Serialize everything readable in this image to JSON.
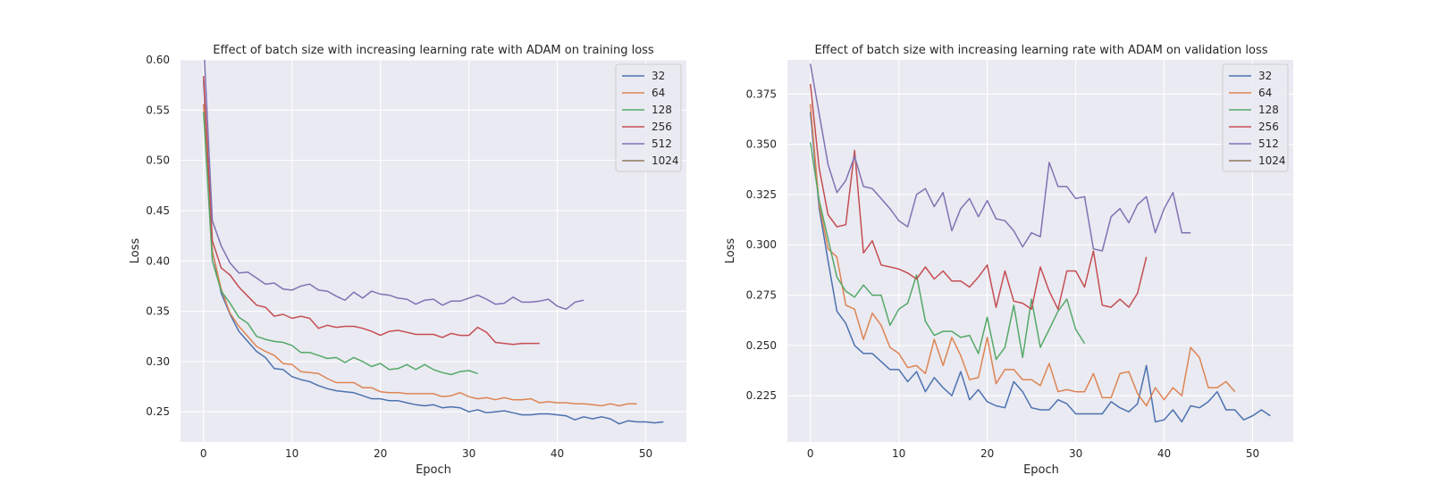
{
  "chart_data": [
    {
      "type": "line",
      "title": "Effect of batch size with increasing learning rate with ADAM on training loss",
      "xlabel": "Epoch",
      "ylabel": "Loss",
      "xlim": [
        -2.6,
        54.6
      ],
      "ylim": [
        0.22,
        0.6
      ],
      "xticks": [
        0,
        10,
        20,
        30,
        40,
        50
      ],
      "yticks": [
        0.25,
        0.3,
        0.35,
        0.4,
        0.45,
        0.5,
        0.55,
        0.6
      ],
      "grid": true,
      "legend_position": "top-right",
      "series": [
        {
          "name": "32",
          "color": "#4c72b0",
          "values": [
            0.58,
            0.41,
            0.368,
            0.347,
            0.33,
            0.32,
            0.31,
            0.304,
            0.293,
            0.292,
            0.285,
            0.282,
            0.28,
            0.276,
            0.273,
            0.271,
            0.27,
            0.269,
            0.266,
            0.263,
            0.263,
            0.261,
            0.261,
            0.259,
            0.257,
            0.256,
            0.257,
            0.254,
            0.255,
            0.254,
            0.25,
            0.252,
            0.249,
            0.25,
            0.251,
            0.249,
            0.247,
            0.247,
            0.248,
            0.248,
            0.247,
            0.246,
            0.242,
            0.245,
            0.243,
            0.245,
            0.243,
            0.238,
            0.241,
            0.24,
            0.24,
            0.239,
            0.24
          ]
        },
        {
          "name": "64",
          "color": "#dd8452",
          "values": [
            0.556,
            0.41,
            0.372,
            0.348,
            0.335,
            0.325,
            0.315,
            0.31,
            0.306,
            0.298,
            0.297,
            0.29,
            0.289,
            0.288,
            0.283,
            0.279,
            0.279,
            0.279,
            0.274,
            0.274,
            0.27,
            0.269,
            0.269,
            0.268,
            0.268,
            0.268,
            0.268,
            0.265,
            0.266,
            0.269,
            0.265,
            0.263,
            0.264,
            0.262,
            0.264,
            0.262,
            0.262,
            0.263,
            0.259,
            0.26,
            0.259,
            0.259,
            0.258,
            0.258,
            0.257,
            0.256,
            0.258,
            0.256,
            0.258,
            0.258
          ]
        },
        {
          "name": "128",
          "color": "#55a868",
          "values": [
            0.548,
            0.4,
            0.37,
            0.358,
            0.344,
            0.338,
            0.325,
            0.322,
            0.32,
            0.319,
            0.316,
            0.309,
            0.309,
            0.306,
            0.303,
            0.304,
            0.299,
            0.304,
            0.3,
            0.295,
            0.298,
            0.292,
            0.293,
            0.297,
            0.292,
            0.297,
            0.292,
            0.289,
            0.287,
            0.29,
            0.291,
            0.288
          ]
        },
        {
          "name": "256",
          "color": "#c44e52",
          "values": [
            0.584,
            0.42,
            0.393,
            0.386,
            0.374,
            0.365,
            0.356,
            0.354,
            0.345,
            0.347,
            0.343,
            0.345,
            0.343,
            0.333,
            0.336,
            0.334,
            0.335,
            0.335,
            0.333,
            0.33,
            0.326,
            0.33,
            0.331,
            0.329,
            0.327,
            0.327,
            0.327,
            0.324,
            0.328,
            0.326,
            0.326,
            0.334,
            0.329,
            0.319,
            0.318,
            0.317,
            0.318,
            0.318,
            0.318
          ]
        },
        {
          "name": "512",
          "color": "#8172b3",
          "values": [
            0.62,
            0.44,
            0.415,
            0.398,
            0.388,
            0.389,
            0.383,
            0.377,
            0.378,
            0.372,
            0.371,
            0.375,
            0.377,
            0.371,
            0.37,
            0.365,
            0.361,
            0.369,
            0.363,
            0.37,
            0.367,
            0.366,
            0.363,
            0.362,
            0.357,
            0.361,
            0.362,
            0.356,
            0.36,
            0.36,
            0.363,
            0.366,
            0.362,
            0.357,
            0.358,
            0.364,
            0.359,
            0.359,
            0.36,
            0.362,
            0.355,
            0.352,
            0.359,
            0.361
          ]
        },
        {
          "name": "1024",
          "color": "#937860",
          "values": []
        }
      ]
    },
    {
      "type": "line",
      "title": "Effect of batch size with increasing learning rate with ADAM on validation loss",
      "xlabel": "Epoch",
      "ylabel": "Loss",
      "xlim": [
        -2.6,
        54.6
      ],
      "ylim": [
        0.202,
        0.392
      ],
      "xticks": [
        0,
        10,
        20,
        30,
        40,
        50
      ],
      "yticks": [
        0.225,
        0.25,
        0.275,
        0.3,
        0.325,
        0.35,
        0.375
      ],
      "grid": true,
      "legend_position": "top-right",
      "series": [
        {
          "name": "32",
          "color": "#4c72b0",
          "values": [
            0.366,
            0.318,
            0.292,
            0.267,
            0.261,
            0.25,
            0.246,
            0.246,
            0.242,
            0.238,
            0.238,
            0.232,
            0.237,
            0.227,
            0.234,
            0.229,
            0.225,
            0.237,
            0.223,
            0.228,
            0.222,
            0.22,
            0.219,
            0.232,
            0.227,
            0.219,
            0.218,
            0.218,
            0.223,
            0.221,
            0.216,
            0.216,
            0.216,
            0.216,
            0.222,
            0.219,
            0.217,
            0.221,
            0.24,
            0.212,
            0.213,
            0.218,
            0.212,
            0.22,
            0.219,
            0.222,
            0.227,
            0.218,
            0.218,
            0.213,
            0.215,
            0.218,
            0.215
          ]
        },
        {
          "name": "64",
          "color": "#dd8452",
          "values": [
            0.37,
            0.32,
            0.298,
            0.294,
            0.27,
            0.268,
            0.253,
            0.266,
            0.26,
            0.249,
            0.246,
            0.239,
            0.24,
            0.236,
            0.253,
            0.24,
            0.254,
            0.245,
            0.233,
            0.234,
            0.254,
            0.231,
            0.238,
            0.238,
            0.233,
            0.233,
            0.23,
            0.241,
            0.227,
            0.228,
            0.227,
            0.227,
            0.236,
            0.224,
            0.224,
            0.236,
            0.237,
            0.226,
            0.22,
            0.229,
            0.223,
            0.229,
            0.225,
            0.249,
            0.244,
            0.229,
            0.229,
            0.232,
            0.227
          ]
        },
        {
          "name": "128",
          "color": "#55a868",
          "values": [
            0.351,
            0.322,
            0.303,
            0.284,
            0.277,
            0.274,
            0.28,
            0.275,
            0.275,
            0.26,
            0.268,
            0.271,
            0.285,
            0.262,
            0.255,
            0.257,
            0.257,
            0.254,
            0.255,
            0.246,
            0.264,
            0.243,
            0.249,
            0.27,
            0.244,
            0.273,
            0.249,
            0.258,
            0.267,
            0.273,
            0.258,
            0.251
          ]
        },
        {
          "name": "256",
          "color": "#c44e52",
          "values": [
            0.38,
            0.338,
            0.315,
            0.309,
            0.31,
            0.347,
            0.296,
            0.302,
            0.29,
            0.289,
            0.288,
            0.286,
            0.283,
            0.289,
            0.283,
            0.287,
            0.282,
            0.282,
            0.279,
            0.284,
            0.29,
            0.269,
            0.287,
            0.272,
            0.271,
            0.268,
            0.289,
            0.277,
            0.268,
            0.287,
            0.287,
            0.279,
            0.297,
            0.27,
            0.269,
            0.273,
            0.269,
            0.276,
            0.294
          ]
        },
        {
          "name": "512",
          "color": "#8172b3",
          "values": [
            0.39,
            0.365,
            0.34,
            0.326,
            0.332,
            0.344,
            0.329,
            0.328,
            0.323,
            0.318,
            0.312,
            0.309,
            0.325,
            0.328,
            0.319,
            0.326,
            0.307,
            0.318,
            0.323,
            0.314,
            0.322,
            0.313,
            0.312,
            0.307,
            0.299,
            0.306,
            0.304,
            0.341,
            0.329,
            0.329,
            0.323,
            0.324,
            0.298,
            0.297,
            0.314,
            0.318,
            0.311,
            0.32,
            0.324,
            0.306,
            0.318,
            0.326,
            0.306,
            0.306
          ]
        },
        {
          "name": "1024",
          "color": "#937860",
          "values": []
        }
      ]
    }
  ]
}
